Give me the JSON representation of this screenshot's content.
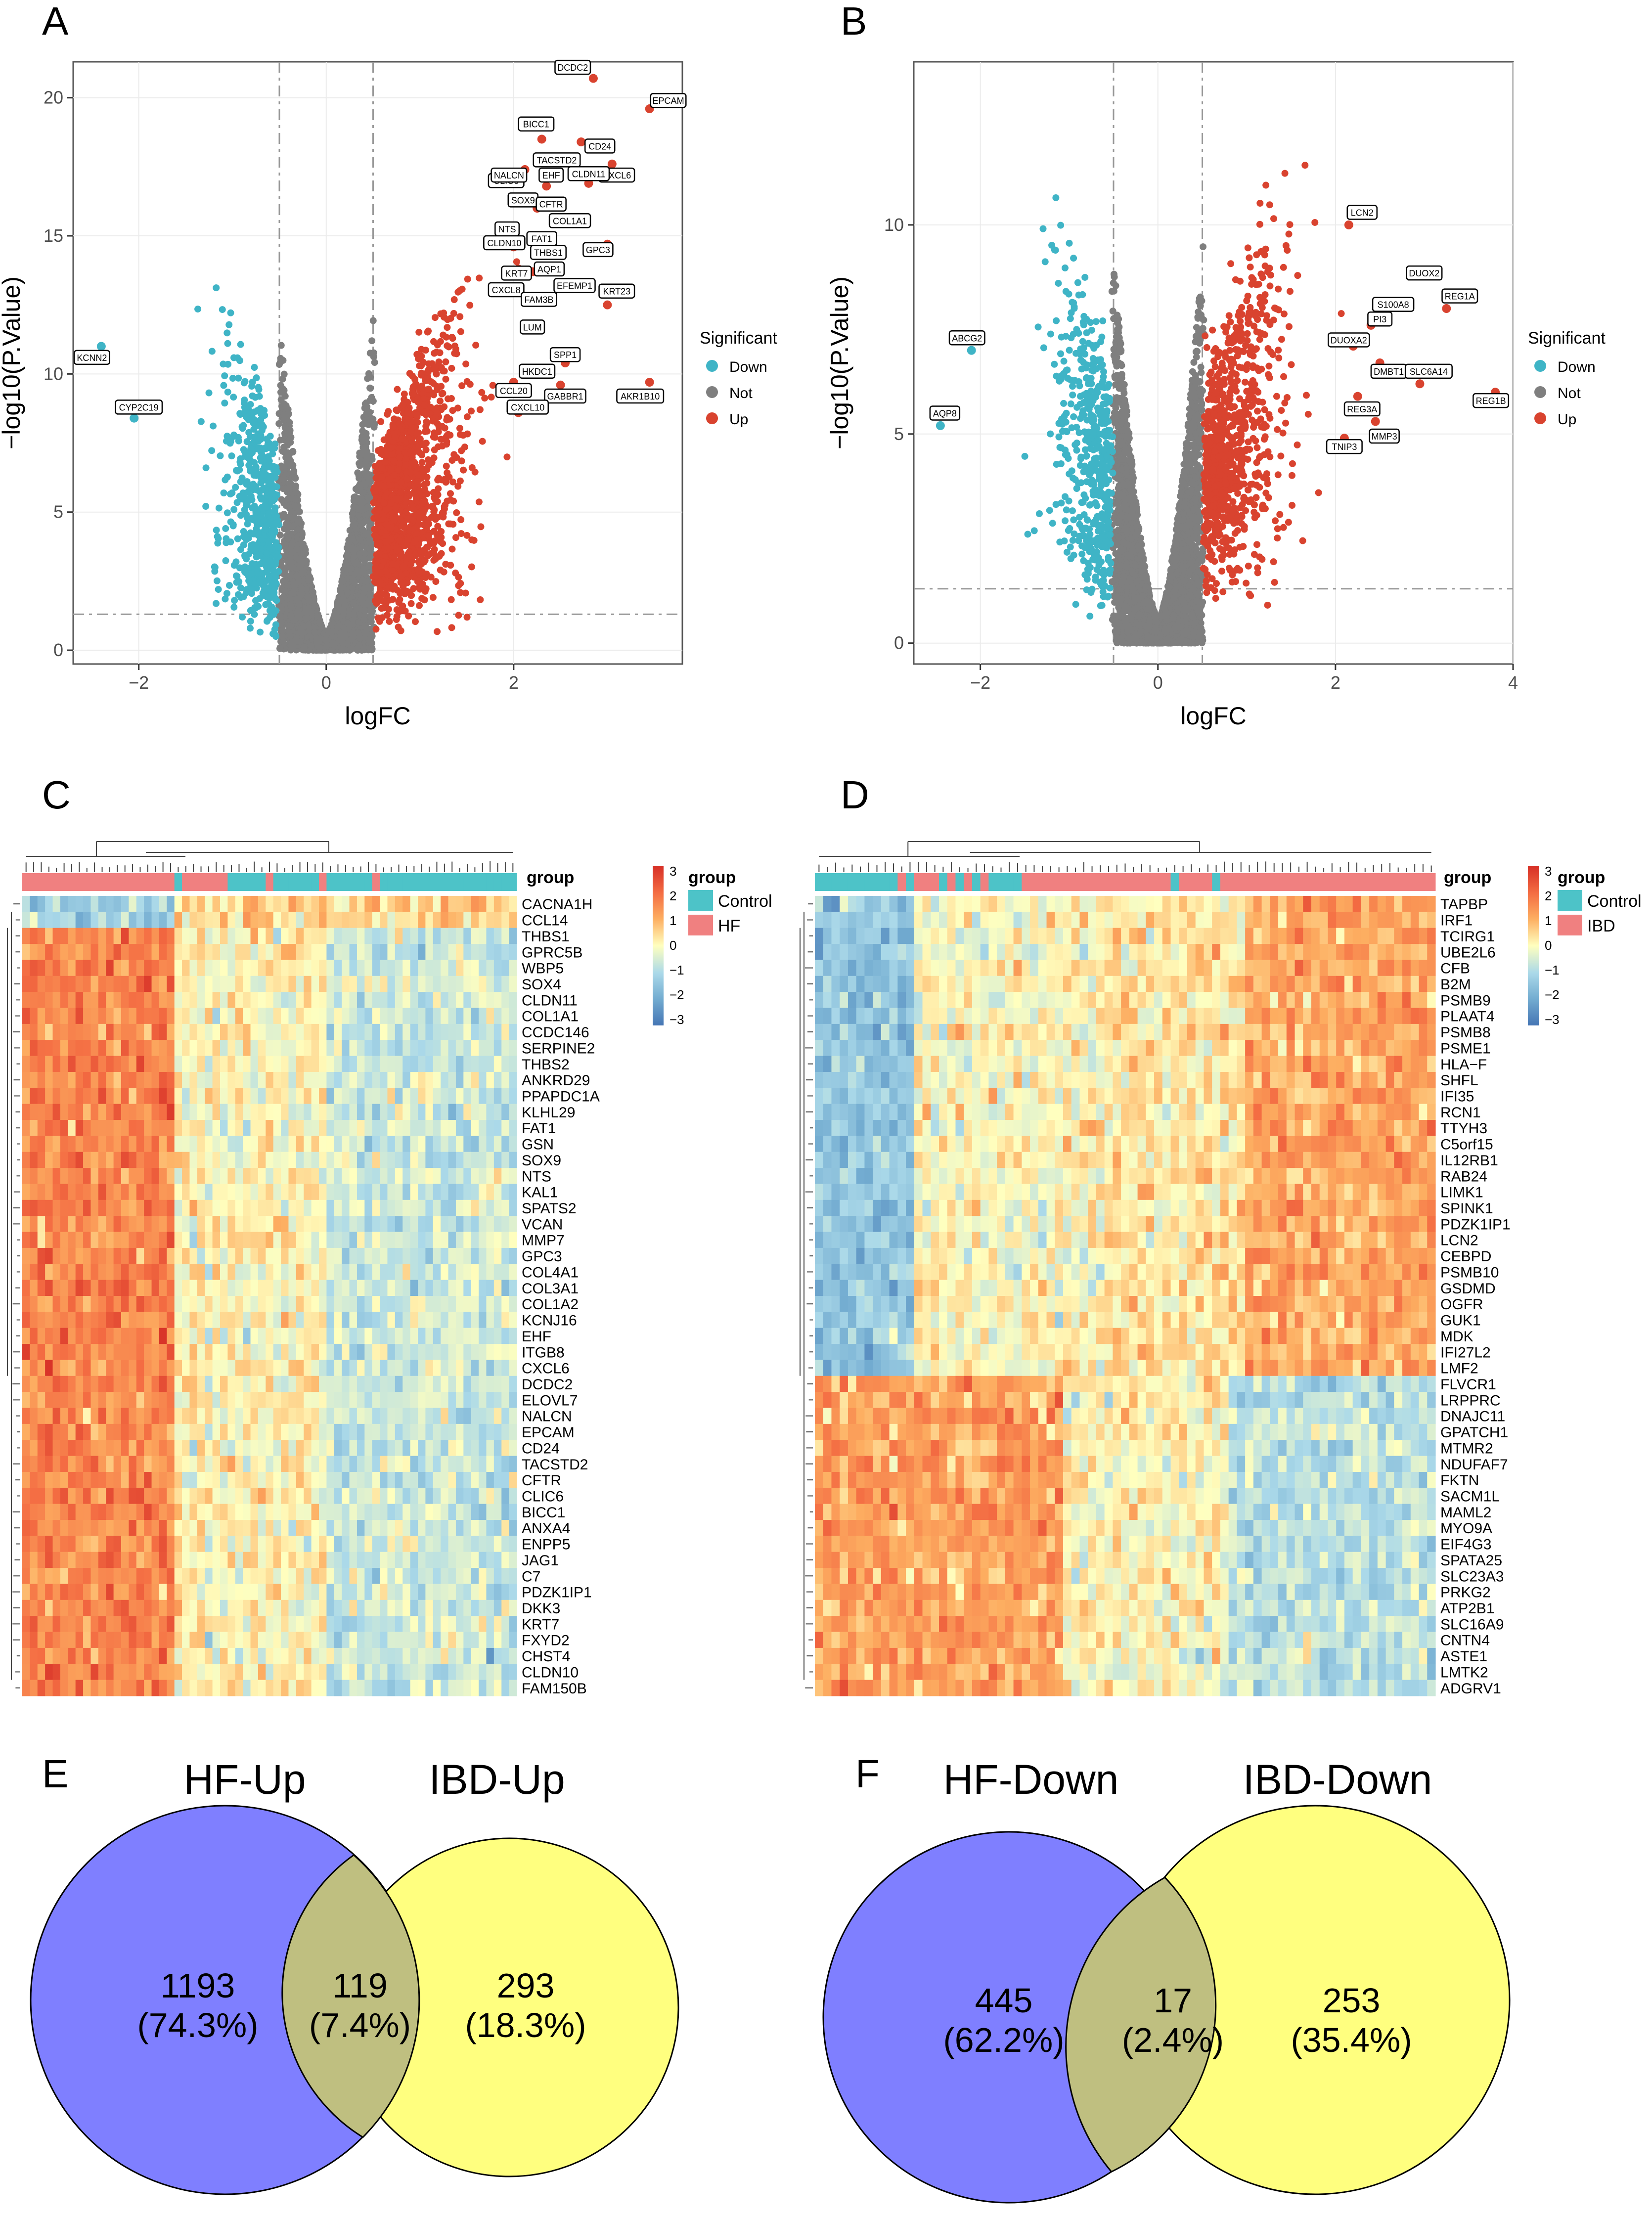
{
  "panel_letters": [
    "A",
    "B",
    "C",
    "D",
    "E",
    "F"
  ],
  "colors": {
    "down": "#3fb4c6",
    "not": "#7f7f7f",
    "up": "#d9432f",
    "control": "#4dc3c8",
    "hf": "#f08080",
    "ibd": "#f08080",
    "venn_left": "#7f7fff",
    "venn_right": "#ffff7f",
    "overlap": "#bfbf80"
  },
  "chart_data": [
    {
      "panel": "A",
      "type": "scatter",
      "xlabel": "logFC",
      "ylabel": "−log10(P.Value)",
      "xlim": [
        -2.7,
        3.8
      ],
      "ylim": [
        -0.5,
        21.3
      ],
      "xticks": [
        -2,
        0,
        2
      ],
      "yticks": [
        0,
        5,
        10,
        15,
        20
      ],
      "thresholds": {
        "logfc": [
          -0.5,
          0.5
        ],
        "p": 1.3
      },
      "legend": {
        "title": "Significant",
        "entries": [
          "Down",
          "Not",
          "Up"
        ],
        "position": "right"
      },
      "cloud": {
        "down_n": 560,
        "not_n": 2600,
        "up_n": 1300,
        "peak_y": 17.5
      },
      "labeled_points": [
        {
          "label": "DCDC2",
          "x": 2.85,
          "y": 20.7,
          "dx": -0.22,
          "dy": 0.4
        },
        {
          "label": "EPCAM",
          "x": 3.45,
          "y": 19.6,
          "dx": 0.2,
          "dy": 0.3
        },
        {
          "label": "BICC1",
          "x": 2.3,
          "y": 18.5,
          "dx": -0.06,
          "dy": 0.55
        },
        {
          "label": "CD24",
          "x": 2.72,
          "y": 18.4,
          "dx": 0.2,
          "dy": -0.15
        },
        {
          "label": "TACSTD2",
          "x": 2.52,
          "y": 17.8,
          "dx": -0.06,
          "dy": -0.05
        },
        {
          "label": "CXCL6",
          "x": 3.05,
          "y": 17.6,
          "dx": 0.05,
          "dy": -0.4
        },
        {
          "label": "CLIC6",
          "x": 2.12,
          "y": 17.4,
          "dx": -0.2,
          "dy": -0.4
        },
        {
          "label": "CLDN11",
          "x": 2.8,
          "y": 16.9,
          "dx": 0,
          "dy": 0.35
        },
        {
          "label": "NALCN",
          "x": 2.05,
          "y": 16.9,
          "dx": -0.1,
          "dy": 0.3
        },
        {
          "label": "EHF",
          "x": 2.35,
          "y": 16.8,
          "dx": 0.05,
          "dy": 0.4
        },
        {
          "label": "SOX9",
          "x": 2.08,
          "y": 16.2,
          "dx": 0.02,
          "dy": 0.1
        },
        {
          "label": "CFTR",
          "x": 2.25,
          "y": 16.0,
          "dx": 0.15,
          "dy": 0.15
        },
        {
          "label": "COL1A1",
          "x": 2.5,
          "y": 15.5,
          "dx": 0.1,
          "dy": 0.05
        },
        {
          "label": "NTS",
          "x": 1.98,
          "y": 15.1,
          "dx": -0.05,
          "dy": 0.15
        },
        {
          "label": "FAT1",
          "x": 2.22,
          "y": 14.8,
          "dx": 0.08,
          "dy": 0.1
        },
        {
          "label": "CLDN10",
          "x": 2.0,
          "y": 14.6,
          "dx": -0.1,
          "dy": 0.15
        },
        {
          "label": "THBS1",
          "x": 2.32,
          "y": 14.3,
          "dx": 0.05,
          "dy": 0.1
        },
        {
          "label": "GPC3",
          "x": 3.0,
          "y": 14.7,
          "dx": -0.1,
          "dy": -0.2
        },
        {
          "label": "KRT7",
          "x": 2.05,
          "y": 13.8,
          "dx": -0.02,
          "dy": -0.15
        },
        {
          "label": "AQP1",
          "x": 2.2,
          "y": 13.7,
          "dx": 0.18,
          "dy": 0.1
        },
        {
          "label": "CXCL8",
          "x": 2.0,
          "y": 13.1,
          "dx": -0.08,
          "dy": -0.05
        },
        {
          "label": "EFEMP1",
          "x": 2.6,
          "y": 13.3,
          "dx": 0.05,
          "dy": -0.1
        },
        {
          "label": "FAM3B",
          "x": 2.22,
          "y": 12.8,
          "dx": 0.05,
          "dy": -0.1
        },
        {
          "label": "KRT23",
          "x": 3.0,
          "y": 12.5,
          "dx": 0.1,
          "dy": 0.5
        },
        {
          "label": "LUM",
          "x": 2.15,
          "y": 11.8,
          "dx": 0.05,
          "dy": -0.1
        },
        {
          "label": "SPP1",
          "x": 2.55,
          "y": 10.4,
          "dx": 0,
          "dy": 0.3
        },
        {
          "label": "HKDC1",
          "x": 2.35,
          "y": 10.1,
          "dx": -0.1,
          "dy": 0
        },
        {
          "label": "CCL20",
          "x": 2.0,
          "y": 9.7,
          "dx": 0,
          "dy": -0.3
        },
        {
          "label": "GABBR1",
          "x": 2.5,
          "y": 9.6,
          "dx": 0.05,
          "dy": -0.4
        },
        {
          "label": "AKR1B10",
          "x": 3.45,
          "y": 9.7,
          "dx": -0.1,
          "dy": -0.5
        },
        {
          "label": "CXCL10",
          "x": 2.05,
          "y": 8.6,
          "dx": 0.1,
          "dy": 0.2
        },
        {
          "label": "KCNN2",
          "x": -2.4,
          "y": 11.0,
          "dx": -0.1,
          "dy": -0.4
        },
        {
          "label": "CYP2C19",
          "x": -2.05,
          "y": 8.4,
          "dx": 0.05,
          "dy": 0.4
        }
      ]
    },
    {
      "panel": "B",
      "type": "scatter",
      "xlabel": "logFC",
      "ylabel": "−log10(P.Value)",
      "xlim": [
        -2.75,
        4.0
      ],
      "ylim": [
        -0.5,
        13.9
      ],
      "xticks": [
        -2,
        0,
        2,
        4
      ],
      "yticks": [
        0,
        5,
        10
      ],
      "thresholds": {
        "logfc": [
          -0.5,
          0.5
        ],
        "p": 1.3
      },
      "legend": {
        "title": "Significant",
        "entries": [
          "Down",
          "Not",
          "Up"
        ],
        "position": "right"
      },
      "cloud": {
        "down_n": 480,
        "not_n": 3500,
        "up_n": 800,
        "peak_y": 13.5
      },
      "labeled_points": [
        {
          "label": "LCN2",
          "x": 2.15,
          "y": 10.0,
          "dx": 0.15,
          "dy": 0.3
        },
        {
          "label": "DUOX2",
          "x": 3.15,
          "y": 8.8,
          "dx": -0.15,
          "dy": 0.05
        },
        {
          "label": "REG1A",
          "x": 3.25,
          "y": 8.0,
          "dx": 0.15,
          "dy": 0.3
        },
        {
          "label": "S100A8",
          "x": 2.55,
          "y": 7.8,
          "dx": 0.1,
          "dy": 0.3
        },
        {
          "label": "PI3",
          "x": 2.4,
          "y": 7.6,
          "dx": 0.1,
          "dy": 0.15
        },
        {
          "label": "DUOXA2",
          "x": 2.2,
          "y": 7.1,
          "dx": -0.05,
          "dy": 0.15
        },
        {
          "label": "DMBT1",
          "x": 2.5,
          "y": 6.7,
          "dx": 0.1,
          "dy": -0.2
        },
        {
          "label": "SLC6A14",
          "x": 2.95,
          "y": 6.2,
          "dx": 0.1,
          "dy": 0.3
        },
        {
          "label": "REG1B",
          "x": 3.8,
          "y": 6.0,
          "dx": -0.05,
          "dy": -0.2
        },
        {
          "label": "REG3A",
          "x": 2.25,
          "y": 5.9,
          "dx": 0.05,
          "dy": -0.3
        },
        {
          "label": "MMP3",
          "x": 2.45,
          "y": 5.3,
          "dx": 0.1,
          "dy": -0.35
        },
        {
          "label": "TNIP3",
          "x": 2.1,
          "y": 4.9,
          "dx": 0,
          "dy": -0.2
        },
        {
          "label": "ABCG2",
          "x": -2.1,
          "y": 7.0,
          "dx": -0.05,
          "dy": 0.3
        },
        {
          "label": "AQP8",
          "x": -2.45,
          "y": 5.2,
          "dx": 0.05,
          "dy": 0.3
        }
      ]
    },
    {
      "panel": "C",
      "type": "heatmap",
      "legend": {
        "title": "group",
        "entries": [
          "Control",
          "HF"
        ],
        "scale_ticks": [
          3,
          2,
          1,
          0,
          -1,
          -2,
          -3
        ]
      },
      "row_labels": [
        "CACNA1H",
        "CCL14",
        "THBS1",
        "GPRC5B",
        "WBP5",
        "SOX4",
        "CLDN11",
        "COL1A1",
        "CCDC146",
        "SERPINE2",
        "THBS2",
        "ANKRD29",
        "PPAPDC1A",
        "KLHL29",
        "FAT1",
        "GSN",
        "SOX9",
        "NTS",
        "KAL1",
        "SPATS2",
        "VCAN",
        "MMP7",
        "GPC3",
        "COL4A1",
        "COL3A1",
        "COL1A2",
        "KCNJ16",
        "EHF",
        "ITGB8",
        "CXCL6",
        "DCDC2",
        "ELOVL7",
        "NALCN",
        "EPCAM",
        "CD24",
        "TACSTD2",
        "CFTR",
        "CLIC6",
        "BICC1",
        "ANXA4",
        "ENPP5",
        "JAG1",
        "C7",
        "PDZK1IP1",
        "DKK3",
        "KRT7",
        "FXYD2",
        "CHST4",
        "CLDN10",
        "FAM150B"
      ],
      "n_samples": 65,
      "sample_groups": "HF×20, Control×1, HF×6, Control×5, HF×1, Control×6, HF×1, Control×6, HF×1, Control×18"
    },
    {
      "panel": "D",
      "type": "heatmap",
      "legend": {
        "title": "group",
        "entries": [
          "Control",
          "IBD"
        ],
        "scale_ticks": [
          3,
          2,
          1,
          0,
          -1,
          -2,
          -3
        ]
      },
      "row_labels": [
        "TAPBP",
        "IRF1",
        "TCIRG1",
        "UBE2L6",
        "CFB",
        "B2M",
        "PSMB9",
        "PLAAT4",
        "PSMB8",
        "PSME1",
        "HLA−F",
        "SHFL",
        "IFI35",
        "RCN1",
        "TTYH3",
        "C5orf15",
        "IL12RB1",
        "RAB24",
        "LIMK1",
        "SPINK1",
        "PDZK1IP1",
        "LCN2",
        "CEBPD",
        "PSMB10",
        "GSDMD",
        "OGFR",
        "GUK1",
        "MDK",
        "IFI27L2",
        "LMF2",
        "FLVCR1",
        "LRPPRC",
        "DNAJC11",
        "GPATCH1",
        "MTMR2",
        "NDUFAF7",
        "FKTN",
        "SACM1L",
        "MAML2",
        "MYO9A",
        "EIF4G3",
        "SPATA25",
        "SLC23A3",
        "PRKG2",
        "ATP2B1",
        "SLC16A9",
        "CNTN4",
        "ASTE1",
        "LMTK2",
        "ADGRV1"
      ],
      "n_samples": 75,
      "sample_groups": "Control×10, IBD×1, Control×1, IBD×3, Control×1, IBD×1, Control×1, IBD×1, Control×1, IBD×1, Control×4, IBD×18, Control×1, IBD×4, Control×1, IBD×26"
    }
  ],
  "venn": [
    {
      "panel": "E",
      "left_title": "HF-Up",
      "right_title": "IBD-Up",
      "left_only": "1193",
      "left_pct": "(74.3%)",
      "overlap": "119",
      "overlap_pct": "(7.4%)",
      "right_only": "293",
      "right_pct": "(18.3%)"
    },
    {
      "panel": "F",
      "left_title": "HF-Down",
      "right_title": "IBD-Down",
      "left_only": "445",
      "left_pct": "(62.2%)",
      "overlap": "17",
      "overlap_pct": "(2.4%)",
      "right_only": "253",
      "right_pct": "(35.4%)"
    }
  ]
}
